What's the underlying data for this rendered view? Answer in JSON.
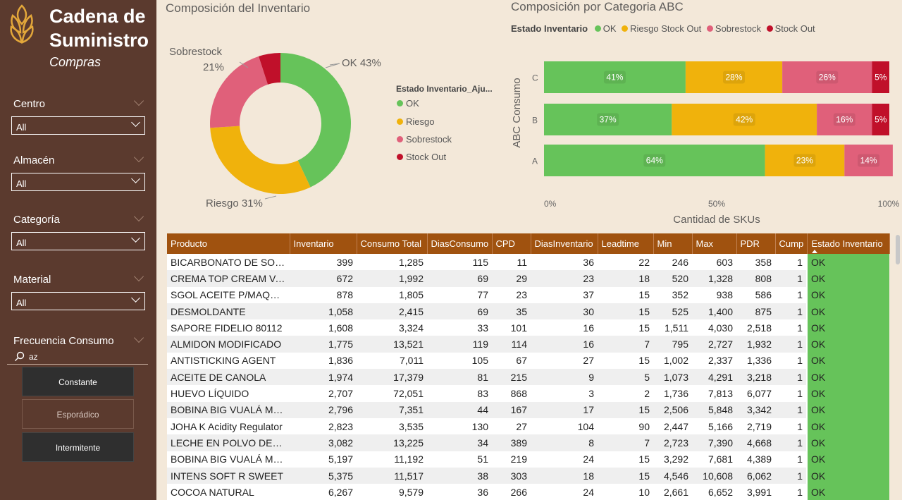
{
  "brand": {
    "line1": "Cadena de",
    "line2": "Suministro",
    "subtitle": "Compras"
  },
  "filters": [
    {
      "label": "Centro",
      "value": "All"
    },
    {
      "label": "Almacén",
      "value": "All"
    },
    {
      "label": "Categoría",
      "value": "All"
    },
    {
      "label": "Material",
      "value": "All"
    }
  ],
  "frecuencia": {
    "label": "Frecuencia Consumo",
    "search": "az",
    "buttons": [
      "Constante",
      "Esporádico",
      "Intermitente"
    ]
  },
  "colors": {
    "ok": "#66c35a",
    "riesgo": "#f0b20c",
    "sobrestock": "#e0607a",
    "stockout": "#c0102a",
    "header": "#a0520f",
    "sidebar": "#5b3a2e",
    "bg": "#f3e8d9"
  },
  "donut": {
    "title": "Composición del Inventario",
    "legend_title": "Estado Inventario_Aju...",
    "labels": {
      "ok": "OK 43%",
      "sob1": "Sobrestock",
      "sob2": "21%",
      "riesgo": "Riesgo 31%"
    },
    "legend": [
      "OK",
      "Riesgo",
      "Sobrestock",
      "Stock Out"
    ]
  },
  "bar": {
    "title": "Composición por Categoria ABC",
    "legend_title": "Estado Inventario",
    "legend": [
      "OK",
      "Riesgo Stock Out",
      "Sobrestock",
      "Stock Out"
    ],
    "xlabel": "Cantidad de SKUs",
    "ylabel": "ABC Consumo",
    "xticks": [
      "0%",
      "50%",
      "100%"
    ]
  },
  "chart_data": [
    {
      "type": "pie",
      "title": "Composición del Inventario",
      "categories": [
        "OK",
        "Riesgo",
        "Sobrestock",
        "Stock Out"
      ],
      "values": [
        43,
        31,
        21,
        5
      ]
    },
    {
      "type": "bar",
      "title": "Composición por Categoria ABC",
      "categories": [
        "C",
        "B",
        "A"
      ],
      "series": [
        {
          "name": "OK",
          "values": [
            41,
            37,
            64
          ]
        },
        {
          "name": "Riesgo Stock Out",
          "values": [
            28,
            42,
            23
          ]
        },
        {
          "name": "Sobrestock",
          "values": [
            26,
            16,
            14
          ]
        },
        {
          "name": "Stock Out",
          "values": [
            5,
            5,
            0
          ]
        }
      ],
      "xlabel": "Cantidad de SKUs",
      "ylabel": "ABC Consumo",
      "xlim": [
        0,
        100
      ]
    }
  ],
  "table": {
    "headers": [
      "Producto",
      "Inventario",
      "Consumo Total",
      "DiasConsumo",
      "CPD",
      "DiasInventario",
      "Leadtime",
      "Min",
      "Max",
      "PDR",
      "Cump",
      "Estado Inventario"
    ],
    "rows": [
      [
        "BICARBONATO DE SODIO",
        "399",
        "1,285",
        "115",
        "11",
        "36",
        "22",
        "246",
        "603",
        "358",
        "1",
        "OK"
      ],
      [
        "CREMA TOP CREAM VAINILLA",
        "672",
        "1,992",
        "69",
        "29",
        "23",
        "18",
        "520",
        "1,328",
        "808",
        "1",
        "OK"
      ],
      [
        "SGOL ACEITE P/MAQUINA",
        "878",
        "1,805",
        "77",
        "23",
        "37",
        "15",
        "352",
        "938",
        "586",
        "1",
        "OK"
      ],
      [
        "DESMOLDANTE",
        "1,058",
        "2,415",
        "69",
        "35",
        "30",
        "15",
        "525",
        "1,400",
        "875",
        "1",
        "OK"
      ],
      [
        "SAPORE FIDELIO 80112",
        "1,608",
        "3,324",
        "33",
        "101",
        "16",
        "15",
        "1,511",
        "4,030",
        "2,518",
        "1",
        "OK"
      ],
      [
        "ALMIDON MODIFICADO",
        "1,775",
        "13,521",
        "119",
        "114",
        "16",
        "7",
        "795",
        "2,727",
        "1,932",
        "1",
        "OK"
      ],
      [
        "ANTISTICKING AGENT",
        "1,836",
        "7,011",
        "105",
        "67",
        "27",
        "15",
        "1,002",
        "2,337",
        "1,336",
        "1",
        "OK"
      ],
      [
        "ACEITE DE CANOLA",
        "1,974",
        "17,379",
        "81",
        "215",
        "9",
        "5",
        "1,073",
        "4,291",
        "3,218",
        "1",
        "OK"
      ],
      [
        "HUEVO LÍQUIDO",
        "2,707",
        "72,051",
        "83",
        "868",
        "3",
        "2",
        "1,736",
        "7,813",
        "6,077",
        "1",
        "OK"
      ],
      [
        "BOBINA BIG VUALÁ MANI",
        "2,796",
        "7,351",
        "44",
        "167",
        "17",
        "15",
        "2,506",
        "5,848",
        "3,342",
        "1",
        "OK"
      ],
      [
        "JOHA K Acidity Regulator",
        "2,823",
        "3,535",
        "130",
        "27",
        "104",
        "90",
        "2,447",
        "5,166",
        "2,719",
        "1",
        "OK"
      ],
      [
        "LECHE EN POLVO DESCREMADA",
        "3,082",
        "13,225",
        "34",
        "389",
        "8",
        "7",
        "2,723",
        "7,390",
        "4,668",
        "1",
        "OK"
      ],
      [
        "BOBINA BIG VUALÁ MAX",
        "5,197",
        "11,192",
        "51",
        "219",
        "24",
        "15",
        "3,292",
        "7,681",
        "4,389",
        "1",
        "OK"
      ],
      [
        "INTENS SOFT R SWEET",
        "5,375",
        "11,517",
        "38",
        "303",
        "18",
        "15",
        "4,546",
        "10,608",
        "6,062",
        "1",
        "OK"
      ],
      [
        "COCOA NATURAL",
        "6,267",
        "9,579",
        "36",
        "266",
        "24",
        "10",
        "2,661",
        "6,652",
        "3,991",
        "1",
        "OK"
      ]
    ]
  }
}
